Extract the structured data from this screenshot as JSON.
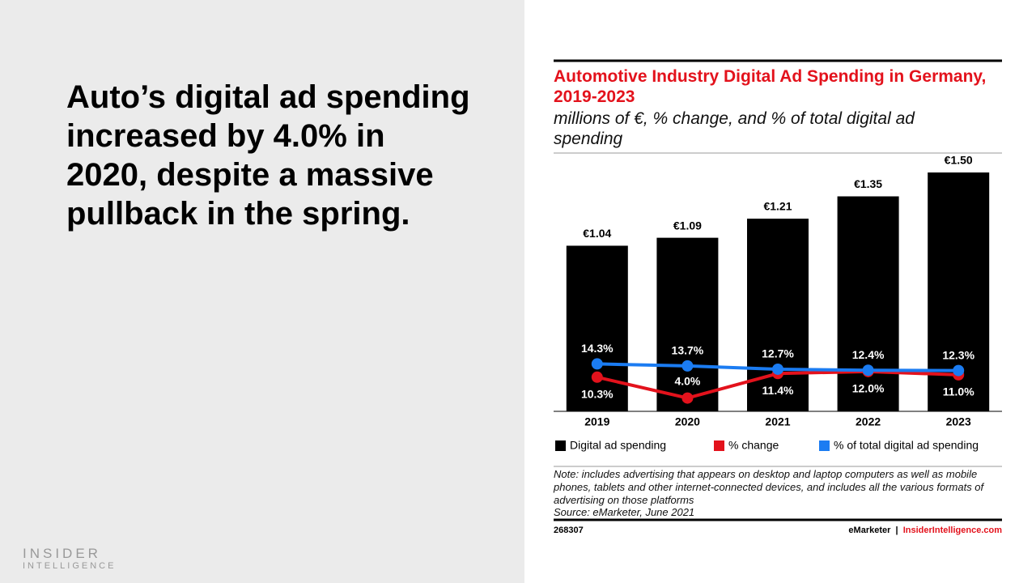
{
  "headline": "Auto’s digital ad spending increased by 4.0% in 2020, despite a massive pullback in the spring.",
  "logo": {
    "line1": "INSIDER",
    "line2": "INTELLIGENCE"
  },
  "chart_data": {
    "type": "bar",
    "title": "Automotive Industry Digital Ad Spending in Germany, 2019-2023",
    "subtitle": "millions of €, % change, and % of total digital ad spending",
    "categories": [
      "2019",
      "2020",
      "2021",
      "2022",
      "2023"
    ],
    "ylim": [
      0,
      1.5
    ],
    "y2lim": [
      0,
      72
    ],
    "series": [
      {
        "name": "Digital ad spending",
        "color": "#000000",
        "values": [
          1.04,
          1.09,
          1.21,
          1.35,
          1.5
        ],
        "value_labels": [
          "€1.04",
          "€1.09",
          "€1.21",
          "€1.35",
          "€1.50"
        ]
      },
      {
        "name": "% change",
        "color": "#e3121c",
        "axis": "y2",
        "type": "line",
        "values": [
          10.3,
          4.0,
          11.4,
          12.0,
          11.0
        ],
        "value_labels": [
          "10.3%",
          "4.0%",
          "11.4%",
          "12.0%",
          "11.0%"
        ]
      },
      {
        "name": "% of total digital ad spending",
        "color": "#1b7cf2",
        "axis": "y2",
        "type": "line",
        "values": [
          14.3,
          13.7,
          12.7,
          12.4,
          12.3
        ],
        "value_labels": [
          "14.3%",
          "13.7%",
          "12.7%",
          "12.4%",
          "12.3%"
        ]
      }
    ],
    "note": "Note: includes advertising that appears on desktop and laptop computers as well as mobile phones, tablets and other internet-connected devices, and includes all the various formats of advertising on those platforms",
    "source": "Source: eMarketer, June 2021",
    "chart_id": "268307",
    "credit": {
      "brand": "eMarketer",
      "separator": "|",
      "site": "InsiderIntelligence.com"
    }
  }
}
